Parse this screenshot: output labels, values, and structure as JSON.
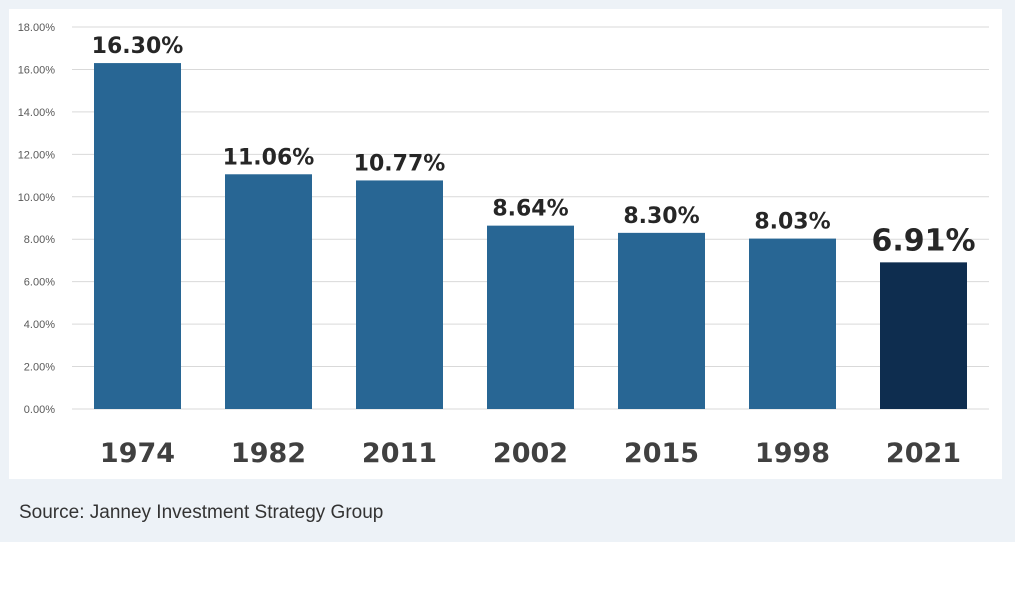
{
  "chart_data": {
    "type": "bar",
    "categories": [
      "1974",
      "1982",
      "2011",
      "2002",
      "2015",
      "1998",
      "2021"
    ],
    "values": [
      16.3,
      11.06,
      10.77,
      8.64,
      8.3,
      8.03,
      6.91
    ],
    "data_labels": [
      "16.30%",
      "11.06%",
      "10.77%",
      "8.64%",
      "8.30%",
      "8.03%",
      "6.91%"
    ],
    "highlight_index": 6,
    "ylim": [
      0,
      18
    ],
    "yticks": [
      "0.00%",
      "2.00%",
      "4.00%",
      "6.00%",
      "8.00%",
      "10.00%",
      "12.00%",
      "14.00%",
      "16.00%",
      "18.00%"
    ],
    "ytick_values": [
      0,
      2,
      4,
      6,
      8,
      10,
      12,
      14,
      16,
      18
    ],
    "grid": true,
    "legend": "none",
    "title": "",
    "xlabel": "",
    "ylabel": "",
    "colors": {
      "bar": "#286694",
      "highlight": "#0e2d4f",
      "grid": "#d9d9d9"
    }
  },
  "source": "Source: Janney Investment Strategy Group"
}
